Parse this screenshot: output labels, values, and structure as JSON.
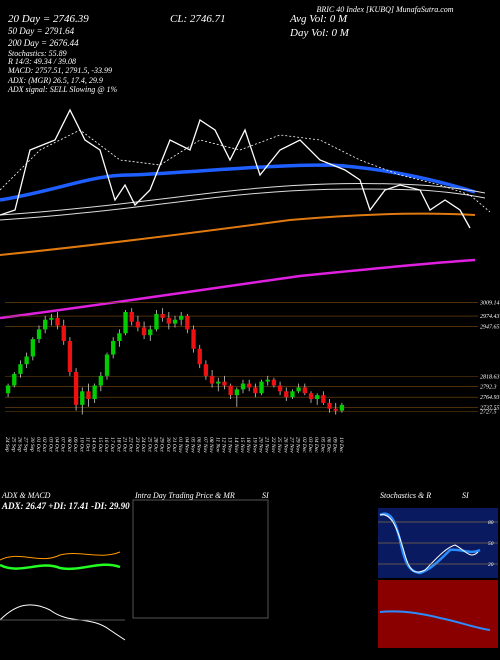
{
  "chart_data": {
    "type": "candlestick",
    "title": "BRIC 40 Index [KUBQ] MunafaSutra.com",
    "annotations": [
      "20 Day = 2746.39",
      "50 Day = 2791.64",
      "200 Day = 2676.44",
      "Stochastics: 55.89",
      "R 14/3: 49.34 / 39.08",
      "MACD: 2757.51, 2791.5, -33.99",
      "ADX: (MGR) 26.5, 17.4, 29.9",
      "ADX signal: SELL Slowing @ 1%",
      "CL: 2746.71",
      "Avg Vol: 0 M",
      "Day Vol: 0 M"
    ],
    "categories": [
      "24 Sep",
      "25 Sep",
      "26 Sep",
      "27 Sep",
      "30 Sep",
      "01 Oct",
      "02 Oct",
      "03 Oct",
      "04 Oct",
      "07 Oct",
      "08 Oct",
      "09 Oct",
      "10 Oct",
      "11 Oct",
      "14 Oct",
      "15 Oct",
      "16 Oct",
      "17 Oct",
      "18 Oct",
      "21 Oct",
      "22 Oct",
      "23 Oct",
      "24 Oct",
      "25 Oct",
      "28 Oct",
      "29 Oct",
      "30 Oct",
      "31 Oct",
      "01 Nov",
      "04 Nov",
      "05 Nov",
      "06 Nov",
      "07 Nov",
      "08 Nov",
      "11 Nov",
      "12 Nov",
      "13 Nov",
      "14 Nov",
      "15 Nov",
      "18 Nov",
      "19 Nov",
      "20 Nov",
      "21 Nov",
      "22 Nov",
      "25 Nov",
      "26 Nov",
      "27 Nov",
      "29 Nov",
      "02 Dec",
      "03 Dec",
      "04 Dec",
      "05 Dec",
      "06 Dec",
      "09 Dec",
      "10 Dec"
    ],
    "open": [
      2775,
      2795,
      2825,
      2850,
      2870,
      2915,
      2940,
      2965,
      2970,
      2950,
      2910,
      2830,
      2745,
      2780,
      2760,
      2795,
      2820,
      2875,
      2910,
      2930,
      2985,
      2960,
      2945,
      2925,
      2940,
      2980,
      2970,
      2955,
      2965,
      2975,
      2940,
      2890,
      2850,
      2820,
      2800,
      2805,
      2795,
      2770,
      2785,
      2800,
      2790,
      2775,
      2805,
      2810,
      2795,
      2780,
      2765,
      2780,
      2790,
      2775,
      2760,
      2770,
      2750,
      2735,
      2730
    ],
    "high": [
      2800,
      2830,
      2860,
      2880,
      2920,
      2950,
      2975,
      2980,
      2985,
      2965,
      2920,
      2840,
      2790,
      2800,
      2800,
      2830,
      2880,
      2920,
      2940,
      2990,
      2995,
      2975,
      2960,
      2950,
      2990,
      2995,
      2985,
      2975,
      2985,
      2980,
      2950,
      2900,
      2860,
      2835,
      2815,
      2820,
      2800,
      2790,
      2810,
      2810,
      2800,
      2810,
      2820,
      2815,
      2805,
      2790,
      2785,
      2800,
      2800,
      2780,
      2775,
      2780,
      2760,
      2750,
      2750
    ],
    "low": [
      2765,
      2790,
      2815,
      2840,
      2860,
      2905,
      2930,
      2950,
      2940,
      2900,
      2820,
      2730,
      2720,
      2740,
      2750,
      2780,
      2810,
      2865,
      2895,
      2925,
      2950,
      2935,
      2915,
      2910,
      2935,
      2960,
      2940,
      2945,
      2950,
      2930,
      2880,
      2840,
      2810,
      2790,
      2780,
      2785,
      2760,
      2740,
      2775,
      2780,
      2765,
      2770,
      2795,
      2790,
      2770,
      2755,
      2760,
      2775,
      2770,
      2750,
      2745,
      2745,
      2725,
      2720,
      2725
    ],
    "close": [
      2795,
      2825,
      2850,
      2870,
      2915,
      2940,
      2965,
      2970,
      2950,
      2910,
      2830,
      2745,
      2780,
      2760,
      2795,
      2820,
      2875,
      2910,
      2930,
      2985,
      2960,
      2945,
      2925,
      2940,
      2980,
      2970,
      2955,
      2965,
      2975,
      2940,
      2890,
      2850,
      2820,
      2800,
      2805,
      2795,
      2770,
      2785,
      2800,
      2790,
      2775,
      2805,
      2810,
      2795,
      2780,
      2765,
      2780,
      2790,
      2775,
      2760,
      2770,
      2750,
      2735,
      2730,
      2745
    ],
    "up_color": "#00cc00",
    "down_color": "#ee1111",
    "ylim": [
      2680,
      3016
    ],
    "yticks": [
      3009.14,
      2974.43,
      2947.65,
      2818.63,
      2792.3,
      2764.93,
      2737.55,
      2727.5
    ],
    "panels": [
      {
        "title": "ADX & MACD",
        "text": "ADX: 26.47 +DI: 17.41 -DI: 29.90"
      },
      {
        "title": "Intra Day Trading Price & MR",
        "text": "SI"
      },
      {
        "title": "Stochastics & R",
        "text": "SI",
        "ticks": [
          80,
          50,
          20
        ]
      }
    ]
  }
}
